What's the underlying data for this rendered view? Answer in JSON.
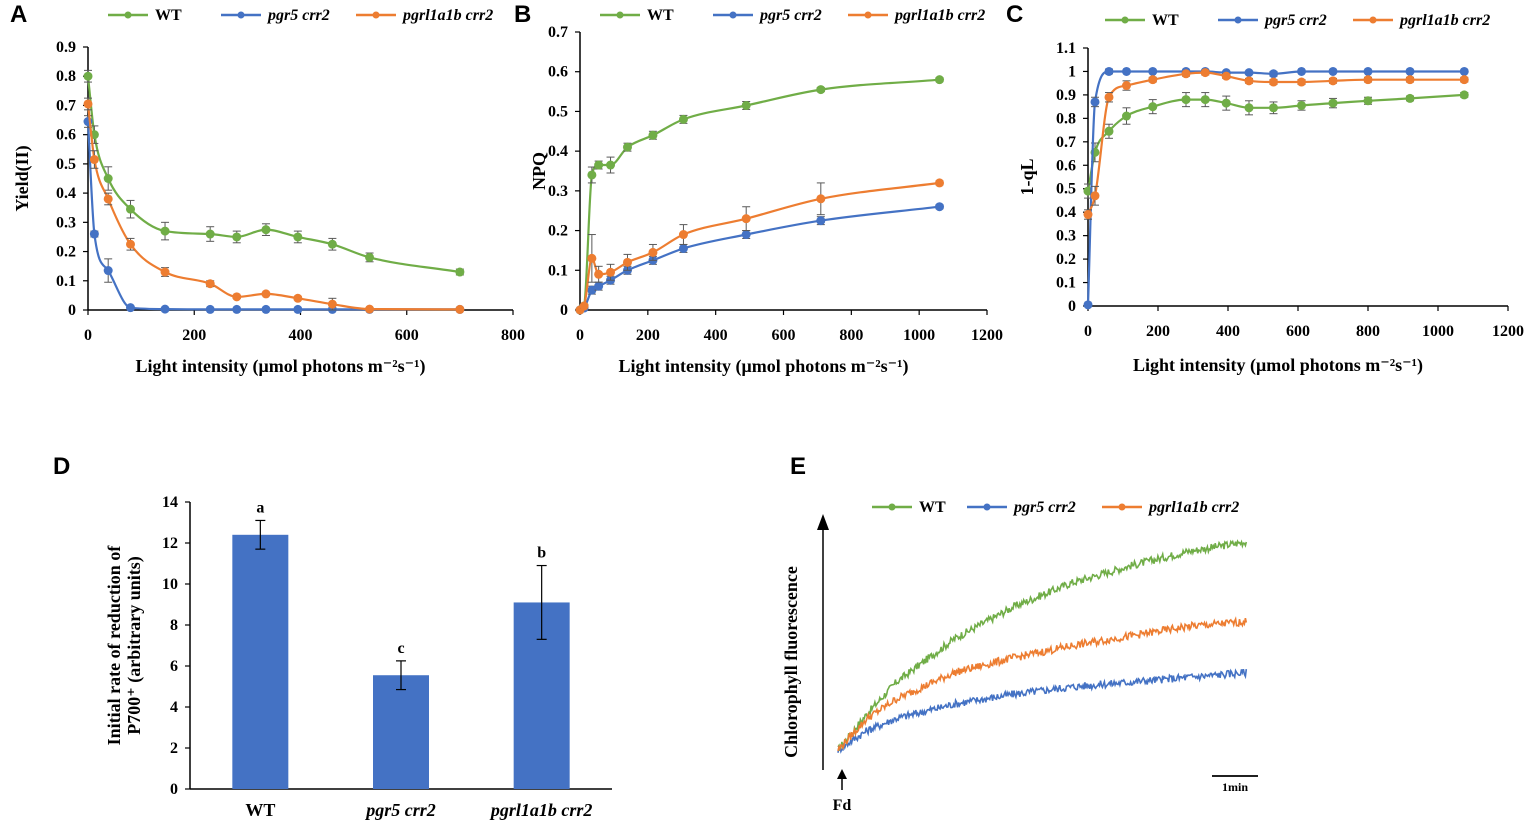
{
  "colors": {
    "wt": "#70ad47",
    "pgr5": "#4472c4",
    "pgrl1": "#ed7d31",
    "bar": "#4472c4",
    "axis": "#000000",
    "err": "#595959"
  },
  "chart_data": [
    {
      "panel": "A",
      "type": "line",
      "xlabel": "Light intensity (μmol photons m⁻²s⁻¹)",
      "ylabel": "Yield(II)",
      "xlim": [
        0,
        800
      ],
      "ylim": [
        0,
        0.9
      ],
      "xticks": [
        "0",
        "200",
        "400",
        "600",
        "800"
      ],
      "yticks": [
        "0",
        "0.1",
        "0.2",
        "0.3",
        "0.4",
        "0.5",
        "0.6",
        "0.7",
        "0.8",
        "0.9"
      ],
      "legend": [
        "WT",
        "pgr5 crr2",
        "pgrl1a1b crr2"
      ],
      "series": [
        {
          "name": "WT",
          "color": "wt",
          "x": [
            0,
            12,
            38,
            80,
            145,
            230,
            280,
            335,
            395,
            460,
            530,
            700
          ],
          "y": [
            0.8,
            0.6,
            0.45,
            0.345,
            0.27,
            0.26,
            0.25,
            0.275,
            0.25,
            0.225,
            0.18,
            0.13
          ],
          "err": [
            0.02,
            0.03,
            0.04,
            0.03,
            0.03,
            0.025,
            0.02,
            0.02,
            0.02,
            0.02,
            0.015,
            0.01
          ]
        },
        {
          "name": "pgr5 crr2",
          "color": "pgr5",
          "x": [
            0,
            12,
            38,
            80,
            145,
            230,
            280,
            335,
            395,
            460,
            530,
            700
          ],
          "y": [
            0.645,
            0.26,
            0.135,
            0.008,
            0.003,
            0.002,
            0.002,
            0.002,
            0.002,
            0.002,
            0.002,
            0.002
          ],
          "err": [
            0.02,
            0.01,
            0.04,
            0.004,
            0.0,
            0.0,
            0.0,
            0.0,
            0.0,
            0.0,
            0.0,
            0.0
          ]
        },
        {
          "name": "pgrl1a1b crr2",
          "color": "pgrl1",
          "x": [
            0,
            12,
            38,
            80,
            145,
            230,
            280,
            335,
            395,
            460,
            530,
            700
          ],
          "y": [
            0.705,
            0.515,
            0.38,
            0.225,
            0.13,
            0.09,
            0.045,
            0.055,
            0.04,
            0.02,
            0.003,
            0.002
          ],
          "err": [
            0.02,
            0.03,
            0.02,
            0.02,
            0.015,
            0.01,
            0.005,
            0.005,
            0.005,
            0.02,
            0.0,
            0.0
          ]
        }
      ]
    },
    {
      "panel": "B",
      "type": "line",
      "xlabel": "Light intensity (μmol photons m⁻²s⁻¹)",
      "ylabel": "NPQ",
      "xlim": [
        0,
        1200
      ],
      "ylim": [
        0,
        0.7
      ],
      "xticks": [
        "0",
        "200",
        "400",
        "600",
        "800",
        "1000",
        "1200"
      ],
      "yticks": [
        "0",
        "0.1",
        "0.2",
        "0.3",
        "0.4",
        "0.5",
        "0.6",
        "0.7"
      ],
      "legend": [
        "WT",
        "pgr5 crr2",
        "pgrl1a1b crr2"
      ],
      "series": [
        {
          "name": "WT",
          "color": "wt",
          "x": [
            0,
            12,
            35,
            55,
            90,
            140,
            215,
            305,
            490,
            710,
            1060
          ],
          "y": [
            0,
            0.01,
            0.34,
            0.365,
            0.365,
            0.41,
            0.44,
            0.48,
            0.515,
            0.555,
            0.58
          ],
          "err": [
            0.0,
            0.005,
            0.02,
            0.01,
            0.02,
            0.01,
            0.01,
            0.01,
            0.01,
            0.005,
            0.005
          ]
        },
        {
          "name": "pgr5 crr2",
          "color": "pgr5",
          "x": [
            0,
            12,
            35,
            55,
            90,
            140,
            215,
            305,
            490,
            710,
            1060
          ],
          "y": [
            0,
            0.005,
            0.05,
            0.06,
            0.075,
            0.1,
            0.125,
            0.155,
            0.19,
            0.225,
            0.26
          ],
          "err": [
            0.0,
            0.002,
            0.01,
            0.01,
            0.01,
            0.01,
            0.01,
            0.01,
            0.01,
            0.01,
            0.005
          ]
        },
        {
          "name": "pgrl1a1b crr2",
          "color": "pgrl1",
          "x": [
            0,
            12,
            35,
            55,
            90,
            140,
            215,
            305,
            490,
            710,
            1060
          ],
          "y": [
            0,
            0.01,
            0.13,
            0.09,
            0.095,
            0.12,
            0.145,
            0.19,
            0.23,
            0.28,
            0.32
          ],
          "err": [
            0.0,
            0.005,
            0.06,
            0.02,
            0.02,
            0.02,
            0.02,
            0.025,
            0.03,
            0.04,
            0.005
          ]
        }
      ]
    },
    {
      "panel": "C",
      "type": "line",
      "xlabel": "Light intensity (μmol photons m⁻²s⁻¹)",
      "ylabel": "1-qL",
      "xlim": [
        0,
        1200
      ],
      "ylim": [
        0,
        1.1
      ],
      "xticks": [
        "0",
        "200",
        "400",
        "600",
        "800",
        "1000",
        "1200"
      ],
      "yticks": [
        "0",
        "0.1",
        "0.2",
        "0.3",
        "0.4",
        "0.5",
        "0.6",
        "0.7",
        "0.8",
        "0.9",
        "1",
        "1.1"
      ],
      "legend": [
        "WT",
        "pgr5 crr2",
        "pgrl1a1b crr2"
      ],
      "series": [
        {
          "name": "WT",
          "color": "wt",
          "x": [
            0,
            20,
            60,
            110,
            185,
            280,
            335,
            395,
            460,
            530,
            610,
            700,
            800,
            920,
            1075
          ],
          "y": [
            0.49,
            0.655,
            0.745,
            0.81,
            0.85,
            0.88,
            0.88,
            0.865,
            0.845,
            0.845,
            0.855,
            0.865,
            0.875,
            0.885,
            0.9
          ],
          "err": [
            0.03,
            0.04,
            0.03,
            0.035,
            0.03,
            0.03,
            0.03,
            0.03,
            0.03,
            0.025,
            0.02,
            0.02,
            0.015,
            0.01,
            0.01
          ]
        },
        {
          "name": "pgr5 crr2",
          "color": "pgr5",
          "x": [
            0,
            20,
            60,
            110,
            185,
            280,
            335,
            395,
            460,
            530,
            610,
            700,
            800,
            920,
            1075
          ],
          "y": [
            0.005,
            0.87,
            1.0,
            1.0,
            1.0,
            1.0,
            1.0,
            0.995,
            0.995,
            0.99,
            1.0,
            1.0,
            1.0,
            1.0,
            1.0
          ],
          "err": [
            0.0,
            0.02,
            0.01,
            0.005,
            0.005,
            0.005,
            0.005,
            0.005,
            0.005,
            0.01,
            0.005,
            0.005,
            0.005,
            0.005,
            0.005
          ]
        },
        {
          "name": "pgrl1a1b crr2",
          "color": "pgrl1",
          "x": [
            0,
            20,
            60,
            110,
            185,
            280,
            335,
            395,
            460,
            530,
            610,
            700,
            800,
            920,
            1075
          ],
          "y": [
            0.39,
            0.47,
            0.89,
            0.94,
            0.965,
            0.99,
            0.995,
            0.98,
            0.96,
            0.955,
            0.955,
            0.96,
            0.965,
            0.965,
            0.965
          ],
          "err": [
            0.02,
            0.04,
            0.02,
            0.02,
            0.01,
            0.01,
            0.01,
            0.01,
            0.01,
            0.01,
            0.01,
            0.01,
            0.01,
            0.01,
            0.01
          ]
        }
      ]
    },
    {
      "panel": "D",
      "type": "bar",
      "ylabel_lines": [
        "Initial rate of reduction of",
        "P700⁺ (arbitrary units)"
      ],
      "ylim": [
        0,
        14
      ],
      "yticks": [
        "0",
        "2",
        "4",
        "6",
        "8",
        "10",
        "12",
        "14"
      ],
      "categories": [
        "WT",
        "pgr5 crr2",
        "pgrl1a1b crr2"
      ],
      "values": [
        12.4,
        5.55,
        9.1
      ],
      "err": [
        0.7,
        0.7,
        1.8
      ],
      "sig_letters": [
        "a",
        "c",
        "b"
      ]
    },
    {
      "panel": "E",
      "type": "line",
      "ylabel": "Chlorophyll fluorescence",
      "legend": [
        "WT",
        "pgr5 crr2",
        "pgrl1a1b crr2"
      ],
      "annotation": "Fd",
      "scale_bar": "1min",
      "xlim": [
        0,
        7.2
      ],
      "ylim": [
        0,
        100
      ],
      "series": [
        {
          "name": "WT",
          "color": "wt",
          "x": [
            0,
            0.5,
            1,
            2,
            3,
            4,
            5,
            6,
            7
          ],
          "y": [
            5,
            20,
            33,
            51,
            64,
            74,
            81,
            87,
            91
          ]
        },
        {
          "name": "pgr5 crr2",
          "color": "pgr5",
          "x": [
            0,
            0.5,
            1,
            2,
            3,
            4,
            5,
            6,
            7
          ],
          "y": [
            5,
            13,
            18,
            24,
            28,
            31,
            33,
            35,
            37
          ]
        },
        {
          "name": "pgrl1a1b crr2",
          "color": "pgrl1",
          "x": [
            0,
            0.5,
            1,
            2,
            3,
            4,
            5,
            6,
            7
          ],
          "y": [
            5,
            18,
            26,
            37,
            43,
            48,
            52,
            56,
            58
          ]
        }
      ]
    }
  ]
}
